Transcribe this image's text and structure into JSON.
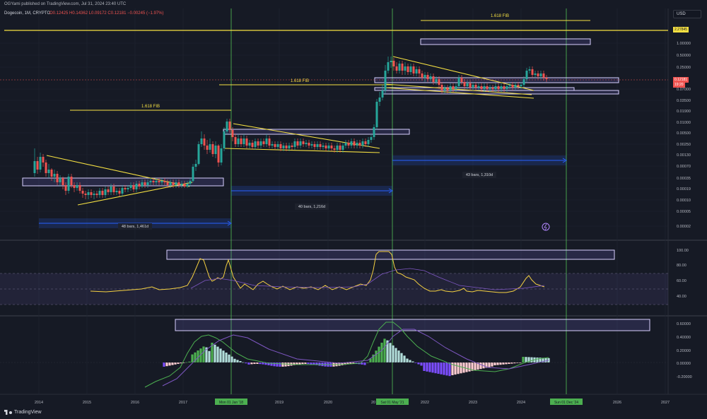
{
  "header": {
    "publisher_line": "OGYami published on TradingView.com, Jul 31, 2024 23:40 UTC",
    "symbol": "Dogecoin, 1M, CRYPTO",
    "ohlc": "O0.12425 H0.14362 L0.09172 C0.12181 −0.00245 (−1.97%)"
  },
  "currency_button": "USD",
  "price_axis": {
    "ticks": [
      "1.00000",
      "0.50000",
      "0.25000",
      "0.07000",
      "0.03500",
      "0.01900",
      "0.01000",
      "0.00500",
      "0.00250",
      "0.00130",
      "0.00070",
      "0.00035",
      "0.00019",
      "0.00010",
      "0.00005",
      "0.00002"
    ],
    "current_price": "0.12181",
    "current_timer": "19:20",
    "fib_price": "2.27845"
  },
  "rsi_axis": {
    "ticks": [
      "100.00",
      "80.00",
      "60.00",
      "40.00"
    ]
  },
  "macd_axis": {
    "ticks": [
      "0.60000",
      "0.40000",
      "0.20000",
      "0.00000",
      "-0.20000"
    ]
  },
  "time_axis": {
    "years": [
      "2014",
      "2015",
      "2016",
      "2017",
      "2019",
      "2020",
      "2022",
      "2023",
      "2024",
      "2026",
      "2027"
    ],
    "highlight_labels": [
      "Mon 01 Jan '18",
      "Sat 01 May '21",
      "Sun 01 Dec '24"
    ],
    "partial_label": "20"
  },
  "annotations": {
    "fib_labels": [
      "1.618 FIB",
      "1.618 FIB",
      "1.618 FIB"
    ],
    "bar_ranges": [
      "48 bars, 1,461d",
      "40 bars, 1,216d",
      "43 bars, 1,310d"
    ]
  },
  "logo": "TradingView",
  "colors": {
    "up": "#26a69a",
    "down": "#ef5350",
    "fib": "#f5e042",
    "range": "#2962ff",
    "zone": "#9c88ff",
    "vline": "#4caf50",
    "rsi": "#f5d142"
  }
}
